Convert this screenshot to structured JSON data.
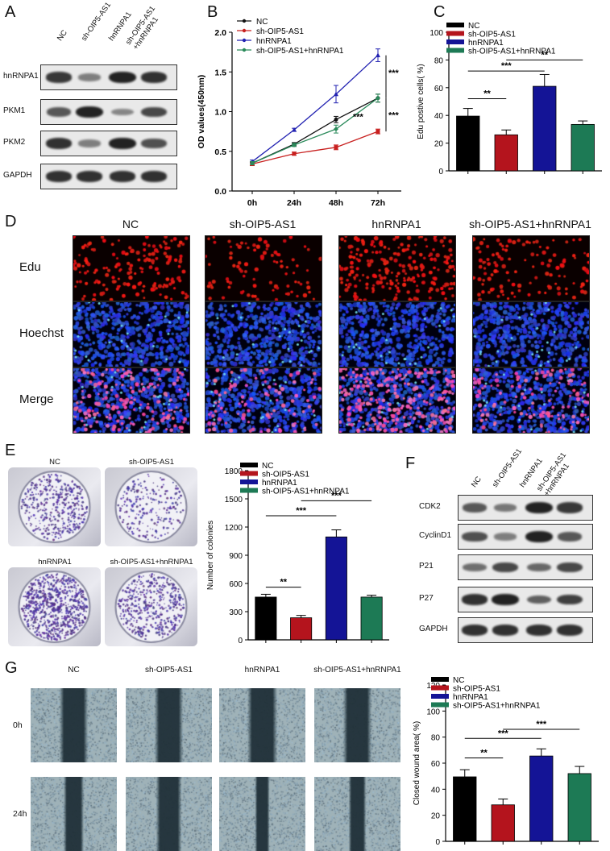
{
  "panels": {
    "A": {
      "letter": "A",
      "columns": [
        "NC",
        "sh-OIP5-AS1",
        "hnRNPA1",
        "sh-OIP5-AS1\n+hnRNPA1"
      ],
      "rows": [
        "hnRNPA1",
        "PKM1",
        "PKM2",
        "GAPDH"
      ],
      "intensity": [
        [
          0.8,
          0.35,
          0.95,
          0.85
        ],
        [
          0.6,
          0.95,
          0.3,
          0.7
        ],
        [
          0.85,
          0.35,
          0.95,
          0.65
        ],
        [
          0.85,
          0.85,
          0.85,
          0.85
        ]
      ]
    },
    "B": {
      "letter": "B",
      "chart_data": {
        "type": "line",
        "ylabel": "OD values(450nm)",
        "x": [
          "0h",
          "24h",
          "48h",
          "72h"
        ],
        "ylim": [
          0.0,
          2.0
        ],
        "yticks": [
          "0.0",
          "0.5",
          "1.0",
          "1.5",
          "2.0"
        ],
        "legend_position": "top-left",
        "series": [
          {
            "name": "NC",
            "values": [
              0.35,
              0.59,
              0.9,
              1.17
            ],
            "errors": [
              0.02,
              0.02,
              0.04,
              0.05
            ],
            "color": "#111111",
            "marker": "circle"
          },
          {
            "name": "sh-OIP5-AS1",
            "values": [
              0.34,
              0.47,
              0.55,
              0.75
            ],
            "errors": [
              0.02,
              0.02,
              0.03,
              0.03
            ],
            "color": "#c8201f",
            "marker": "square"
          },
          {
            "name": "hnRNPA1",
            "values": [
              0.37,
              0.77,
              1.22,
              1.71
            ],
            "errors": [
              0.02,
              0.02,
              0.11,
              0.08
            ],
            "color": "#2323b2",
            "marker": "triangle"
          },
          {
            "name": "sh-OIP5-AS1+hnRNPA1",
            "values": [
              0.35,
              0.58,
              0.78,
              1.17
            ],
            "errors": [
              0.02,
              0.02,
              0.05,
              0.05
            ],
            "color": "#2a8a5a",
            "marker": "diamond"
          }
        ],
        "annotations": [
          "***",
          "***",
          "***"
        ]
      }
    },
    "C": {
      "letter": "C",
      "chart_data": {
        "type": "bar",
        "ylabel": "Edu postive cells( %)",
        "categories": [
          "NC",
          "sh-OIP5-AS1",
          "hnRNPA1",
          "sh-OIP5-AS1+hnRNPA1"
        ],
        "values": [
          39.5,
          26.0,
          61.0,
          33.5
        ],
        "errors": [
          5.5,
          3.5,
          8.5,
          2.5
        ],
        "colors": [
          "#000000",
          "#b4141d",
          "#141496",
          "#1d7a55"
        ],
        "ylim": [
          0,
          100
        ],
        "yticks": [
          "0",
          "20",
          "40",
          "60",
          "80",
          "100"
        ],
        "significance": [
          "**",
          "***",
          "**"
        ]
      }
    },
    "D": {
      "letter": "D",
      "columns": [
        "NC",
        "sh-OIP5-AS1",
        "hnRNPA1",
        "sh-OIP5-AS1+hnRNPA1"
      ],
      "rows": [
        "Edu",
        "Hoechst",
        "Merge"
      ],
      "density": [
        0.55,
        0.3,
        0.75,
        0.4
      ]
    },
    "E": {
      "letter": "E",
      "plates": [
        "NC",
        "sh-OIP5-AS1",
        "hnRNPA1",
        "sh-OIP5-AS1+hnRNPA1"
      ],
      "plate_density": [
        0.45,
        0.25,
        0.85,
        0.5
      ],
      "chart_data": {
        "type": "bar",
        "ylabel": "Number of colonies",
        "categories": [
          "NC",
          "sh-OIP5-AS1",
          "hnRNPA1",
          "sh-OIP5-AS1+hnRNPA1"
        ],
        "values": [
          455,
          235,
          1095,
          455
        ],
        "errors": [
          30,
          25,
          75,
          20
        ],
        "colors": [
          "#000000",
          "#b4141d",
          "#141496",
          "#1d7a55"
        ],
        "ylim": [
          0,
          1800
        ],
        "yticks": [
          "0",
          "300",
          "600",
          "900",
          "1200",
          "1500",
          "1800"
        ],
        "significance": [
          "**",
          "***",
          "***"
        ]
      }
    },
    "F": {
      "letter": "F",
      "columns": [
        "NC",
        "sh-OIP5-AS1",
        "hnRNPA1",
        "sh-OIP5-AS1\n+hnRNPA1"
      ],
      "rows": [
        "CDK2",
        "CyclinD1",
        "P21",
        "P27",
        "GAPDH"
      ],
      "intensity": [
        [
          0.6,
          0.4,
          0.95,
          0.8
        ],
        [
          0.65,
          0.35,
          0.95,
          0.6
        ],
        [
          0.45,
          0.7,
          0.5,
          0.7
        ],
        [
          0.85,
          0.95,
          0.55,
          0.75
        ],
        [
          0.85,
          0.85,
          0.85,
          0.85
        ]
      ]
    },
    "G": {
      "letter": "G",
      "columns": [
        "NC",
        "sh-OIP5-AS1",
        "hnRNPA1",
        "sh-OIP5-AS1+hnRNPA1"
      ],
      "rows": [
        "0h",
        "24h"
      ],
      "gap_0h": [
        0.16,
        0.16,
        0.17,
        0.16
      ],
      "gap_24h": [
        0.1,
        0.14,
        0.06,
        0.08
      ],
      "chart_data": {
        "type": "bar",
        "ylabel": "Closed wound area( %)",
        "categories": [
          "NC",
          "sh-OIP5-AS1",
          "hnRNPA1",
          "sh-OIP5-AS1+hnRNPA1"
        ],
        "values": [
          49.5,
          28.0,
          65.5,
          52.0
        ],
        "errors": [
          5.5,
          4.5,
          5.5,
          5.5
        ],
        "colors": [
          "#000000",
          "#b4141d",
          "#141496",
          "#1d7a55"
        ],
        "ylim": [
          0,
          120
        ],
        "yticks": [
          "0",
          "20",
          "40",
          "60",
          "80",
          "100",
          "120"
        ],
        "significance": [
          "**",
          "***",
          "***"
        ]
      }
    }
  }
}
